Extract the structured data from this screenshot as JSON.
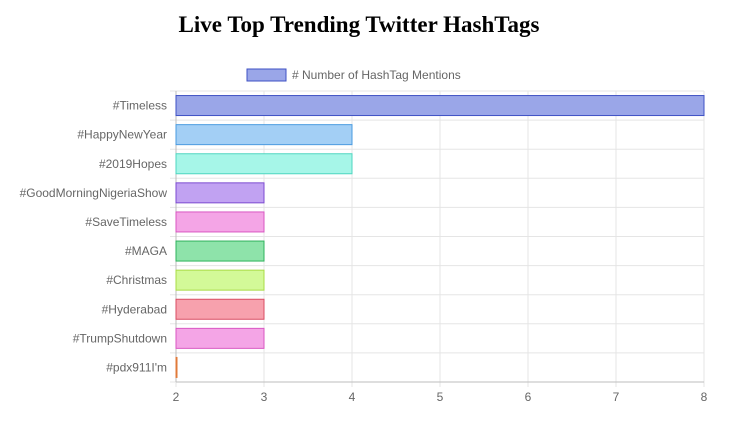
{
  "page_title": "Live Top Trending Twitter HashTags",
  "chart_data": {
    "type": "bar",
    "orientation": "horizontal",
    "title": "",
    "xlabel": "",
    "ylabel": "",
    "xlim": [
      2,
      8
    ],
    "x_ticks": [
      "2",
      "3",
      "4",
      "5",
      "6",
      "7",
      "8"
    ],
    "grid": true,
    "legend_position": "top",
    "categories": [
      "#Timeless",
      "#HappyNewYear",
      "#2019Hopes",
      "#GoodMorningNigeriaShow",
      "#SaveTimeless",
      "#MAGA",
      "#Christmas",
      "#Hyderabad",
      "#TrumpShutdown",
      "#pdx911I'm"
    ],
    "series": [
      {
        "name": "# Number of HashTag Mentions",
        "values": [
          8,
          4,
          4,
          3,
          3,
          3,
          3,
          3,
          3,
          2
        ],
        "fill_colors": [
          "#9AA6E8",
          "#A3CFF5",
          "#A6F6E8",
          "#C1A2F2",
          "#F4A5E6",
          "#8EE3AA",
          "#D3F998",
          "#F7A1AD",
          "#F4A5E6",
          "#F5B88F"
        ],
        "stroke_colors": [
          "#3F51C4",
          "#4A9BE0",
          "#4FD6C0",
          "#7C4BD1",
          "#D957C2",
          "#2FB35C",
          "#A9DC46",
          "#D94D63",
          "#D957C2",
          "#E07A3A"
        ]
      }
    ]
  }
}
